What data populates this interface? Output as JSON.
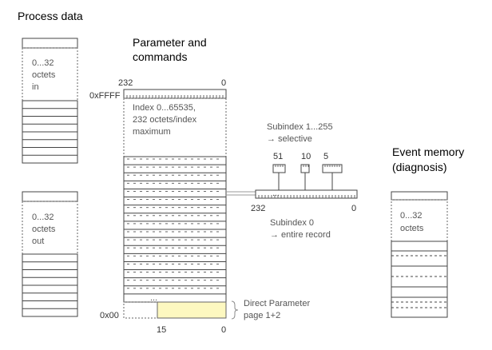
{
  "process": {
    "title": "Process data",
    "in_label": [
      "0...32",
      "octets",
      "in"
    ],
    "out_label": [
      "0...32",
      "octets",
      "out"
    ]
  },
  "params": {
    "title": [
      "Parameter and",
      "commands"
    ],
    "top_left": "232",
    "top_right": "0",
    "addr_high": "0xFFFF",
    "index_text": [
      "Index 0...65535,",
      "232 octets/index",
      "maximum"
    ],
    "ellipsis": "...",
    "addr_low": "0x00",
    "bottom_left": "15",
    "bottom_right": "0",
    "direct": [
      "Direct Parameter",
      "page 1+2"
    ],
    "highlight_color": "#fdf8c0"
  },
  "subindex": {
    "selective": [
      "Subindex 1...255",
      "→ selective"
    ],
    "numbers": [
      "51",
      "10",
      "5"
    ],
    "record_left": "232",
    "record_right": "0",
    "record_ellipsis": "...",
    "entire": [
      "Subindex 0",
      "→ entire record"
    ]
  },
  "event": {
    "title": [
      "Event memory",
      "(diagnosis)"
    ],
    "label": [
      "0...32",
      "octets"
    ]
  }
}
